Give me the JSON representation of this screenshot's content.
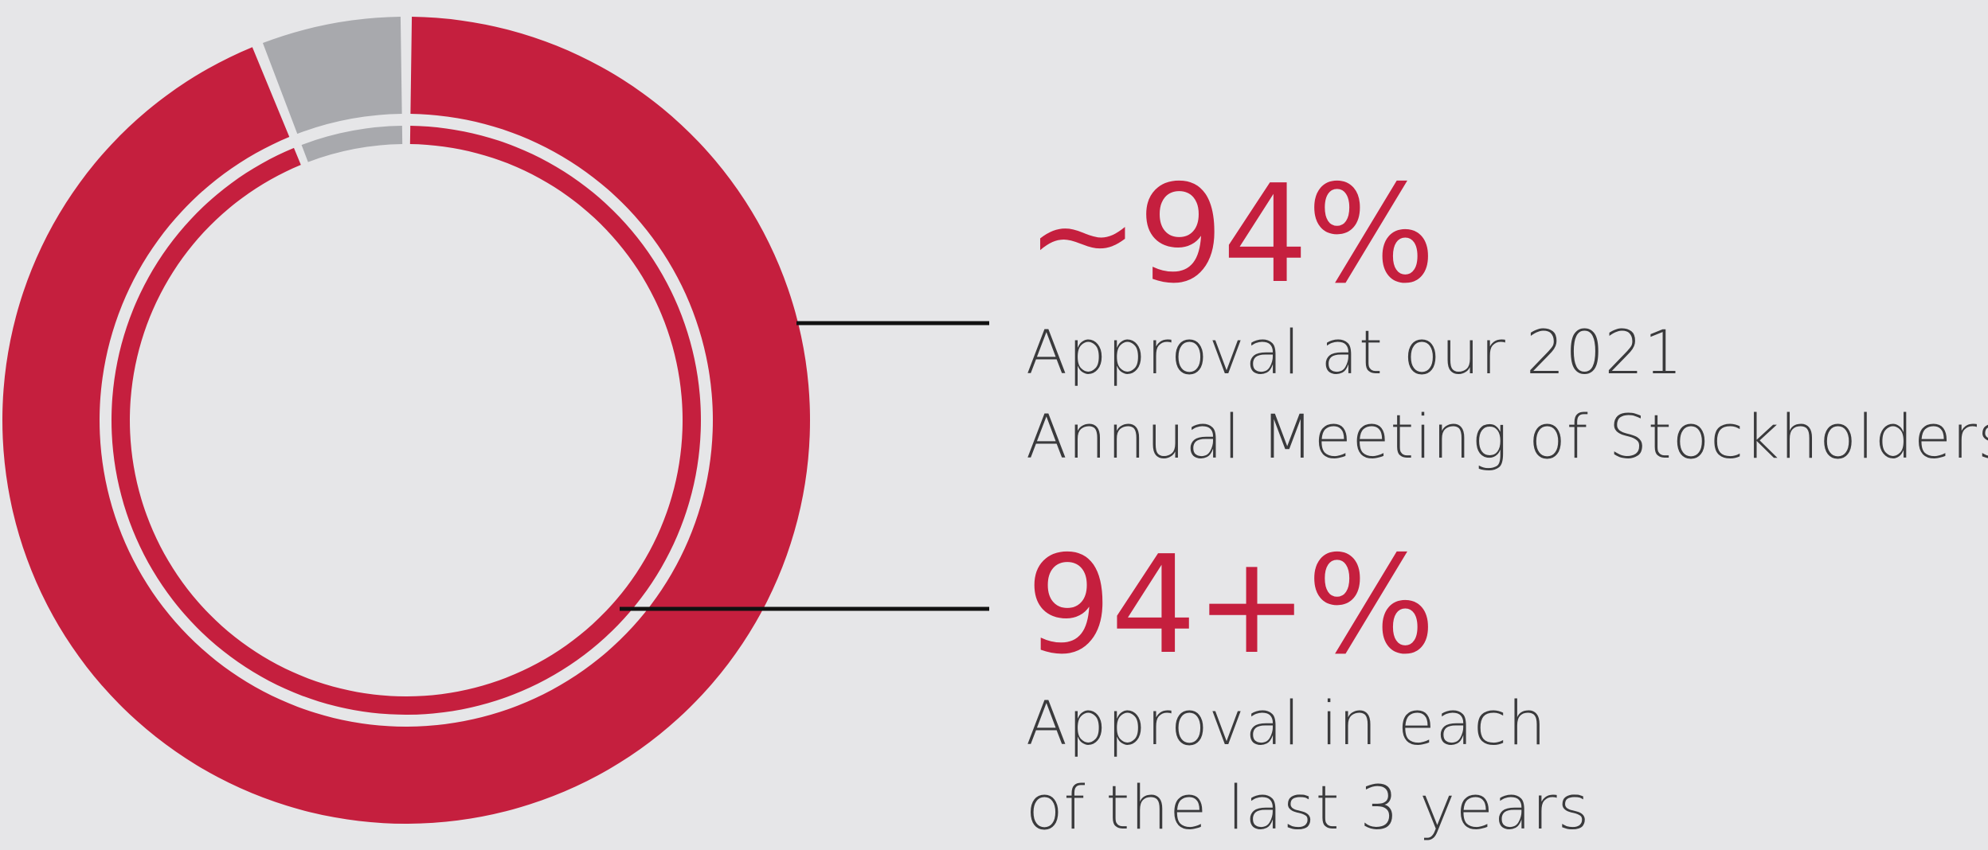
{
  "colors": {
    "background": "#e6e6e8",
    "approve": "#c51f3e",
    "other": "#a8a9ad",
    "leader": "#111111",
    "label_text": "#3a3a3c"
  },
  "chart_data": [
    {
      "type": "pie",
      "ring": "outer",
      "series": [
        {
          "name": "approval",
          "value": 94,
          "color": "#c51f3e"
        },
        {
          "name": "other",
          "value": 6,
          "color": "#a8a9ad"
        }
      ],
      "annotation": {
        "value_text": "~94%",
        "label_lines": [
          "Approval at our 2021",
          "Annual Meeting of Stockholders"
        ]
      }
    },
    {
      "type": "pie",
      "ring": "inner",
      "series": [
        {
          "name": "approval",
          "value": 94,
          "color": "#c51f3e"
        },
        {
          "name": "other",
          "value": 6,
          "color": "#a8a9ad"
        }
      ],
      "annotation": {
        "value_text": "94+%",
        "label_lines": [
          "Approval in each",
          "of the last 3 years"
        ]
      }
    }
  ],
  "stats": [
    {
      "value": "~94%",
      "line1": "Approval at our 2021",
      "line2": "Annual Meeting of Stockholders"
    },
    {
      "value": "94+%",
      "line1": "Approval in each",
      "line2": "of the last 3 years"
    }
  ]
}
